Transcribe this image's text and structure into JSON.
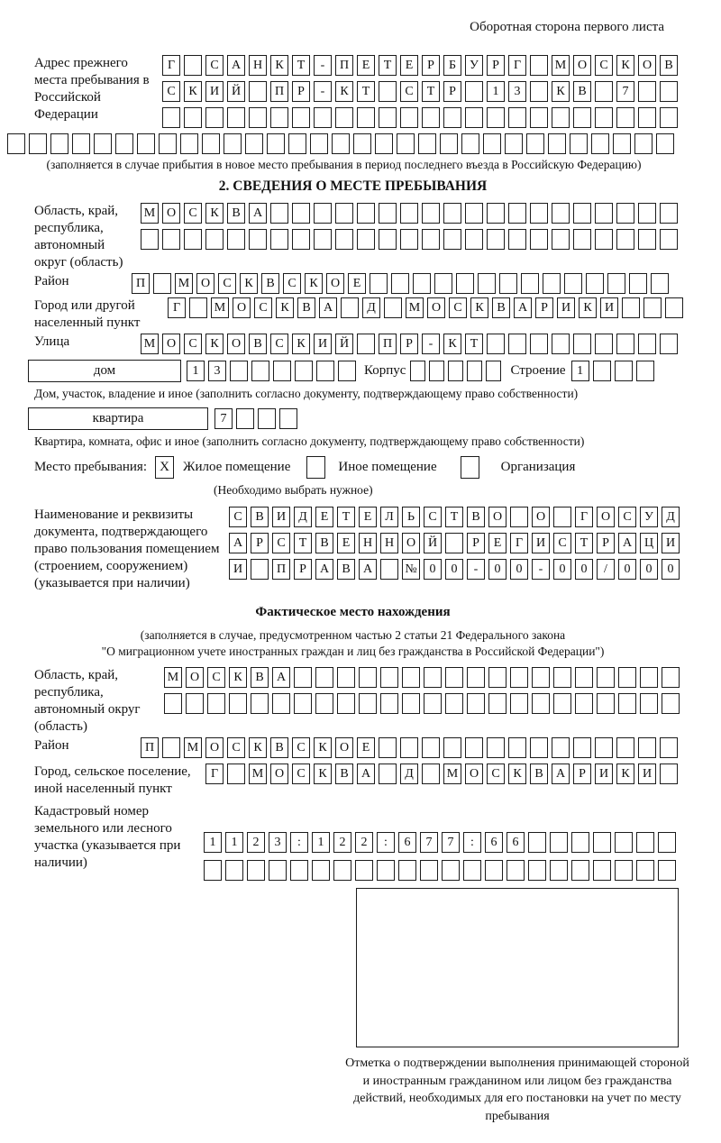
{
  "page": {
    "back_note": "Оборотная сторона первого листа"
  },
  "prev_address": {
    "label": "Адрес прежнего места пребывания в Российской Федерации",
    "row1": {
      "text": "Г САНКТ-ПЕТЕРБУРГ МОСКОВ",
      "len": 24
    },
    "row2": {
      "text": "СКИЙ ПР-КТ СТР 13 КВ 7",
      "len": 24
    },
    "row3": {
      "text": "",
      "len": 24
    },
    "row4": {
      "text": "",
      "len": 31
    },
    "note": "(заполняется в случае прибытия в новое место пребывания в период последнего въезда в Российскую Федерацию)"
  },
  "section2": {
    "title": "2. СВЕДЕНИЯ О МЕСТЕ ПРЕБЫВАНИЯ",
    "oblast": {
      "label": "Область, край, республика, автономный округ (область)",
      "row1": {
        "text": "МОСКВА",
        "len": 25
      },
      "row2": {
        "text": "",
        "len": 25
      }
    },
    "raion": {
      "label": "Район",
      "row": {
        "text": "П МОСКВСКОЕ",
        "len": 25
      }
    },
    "gorod": {
      "label": "Город или другой населенный пункт",
      "row": {
        "text": "Г МОСКВА Д МОСКВАРИКИ",
        "len": 24
      }
    },
    "ulitsa": {
      "label": "Улица",
      "row": {
        "text": "МОСКОВСКИЙ ПР-КТ",
        "len": 25
      }
    },
    "dom": {
      "box_label": "дом",
      "cells": {
        "text": "13",
        "len": 8
      },
      "korpus_label": "Корпус",
      "korpus_cells": {
        "text": "",
        "len": 5
      },
      "stroenie_label": "Строение",
      "stroenie_cells": {
        "text": "1",
        "len": 4
      },
      "note": "Дом, участок, владение и иное (заполнить согласно документу, подтверждающему право собственности)"
    },
    "kvartira": {
      "box_label": "квартира",
      "cells": {
        "text": "7",
        "len": 4
      },
      "note": "Квартира, комната, офис и иное (заполнить согласно документу, подтверждающему право собственности)"
    },
    "place": {
      "label": "Место пребывания:",
      "options": [
        {
          "label": "Жилое помещение",
          "mark": "X"
        },
        {
          "label": "Иное помещение",
          "mark": ""
        },
        {
          "label": "Организация",
          "mark": ""
        }
      ],
      "note": "(Необходимо выбрать нужное)"
    },
    "doc": {
      "label": "Наименование и реквизиты документа, подтверждающего право пользования помещением (строением, сооружением) (указывается при наличии)",
      "row1": {
        "text": "СВИДЕТЕЛЬСТВО О ГОСУД",
        "len": 21
      },
      "row2": {
        "text": "АРСТВЕННОЙ РЕГИСТРАЦИ",
        "len": 21
      },
      "row3": {
        "text": "И ПРАВА №00-00-00/000",
        "len": 21
      }
    }
  },
  "factual": {
    "title": "Фактическое место нахождения",
    "note1": "(заполняется в случае, предусмотренном частью 2 статьи 21 Федерального закона",
    "note2": "\"О миграционном учете иностранных граждан и лиц без гражданства в Российской Федерации\")",
    "oblast": {
      "label": "Область, край, республика, автономный округ (область)",
      "row1": {
        "text": "МОСКВА",
        "len": 24
      },
      "row2": {
        "text": "",
        "len": 24
      }
    },
    "raion": {
      "label": "Район",
      "row": {
        "text": "П МОСКВСКОЕ",
        "len": 25
      }
    },
    "gorod": {
      "label": "Город, сельское поселение, иной населенный пункт",
      "row": {
        "text": "Г МОСКВА Д МОСКВАРИКИ",
        "len": 22
      }
    },
    "kadastr": {
      "label": "Кадастровый номер земельного или лесного участка (указывается при наличии)",
      "row1": {
        "text": "1123:122:677:66",
        "len": 22
      },
      "row2": {
        "text": "",
        "len": 22
      }
    }
  },
  "stamp": {
    "caption": "Отметка о подтверждении выполнения принимающей стороной и иностранным гражданином или лицом без гражданства действий, необходимых для его постановки на учет по месту пребывания"
  }
}
